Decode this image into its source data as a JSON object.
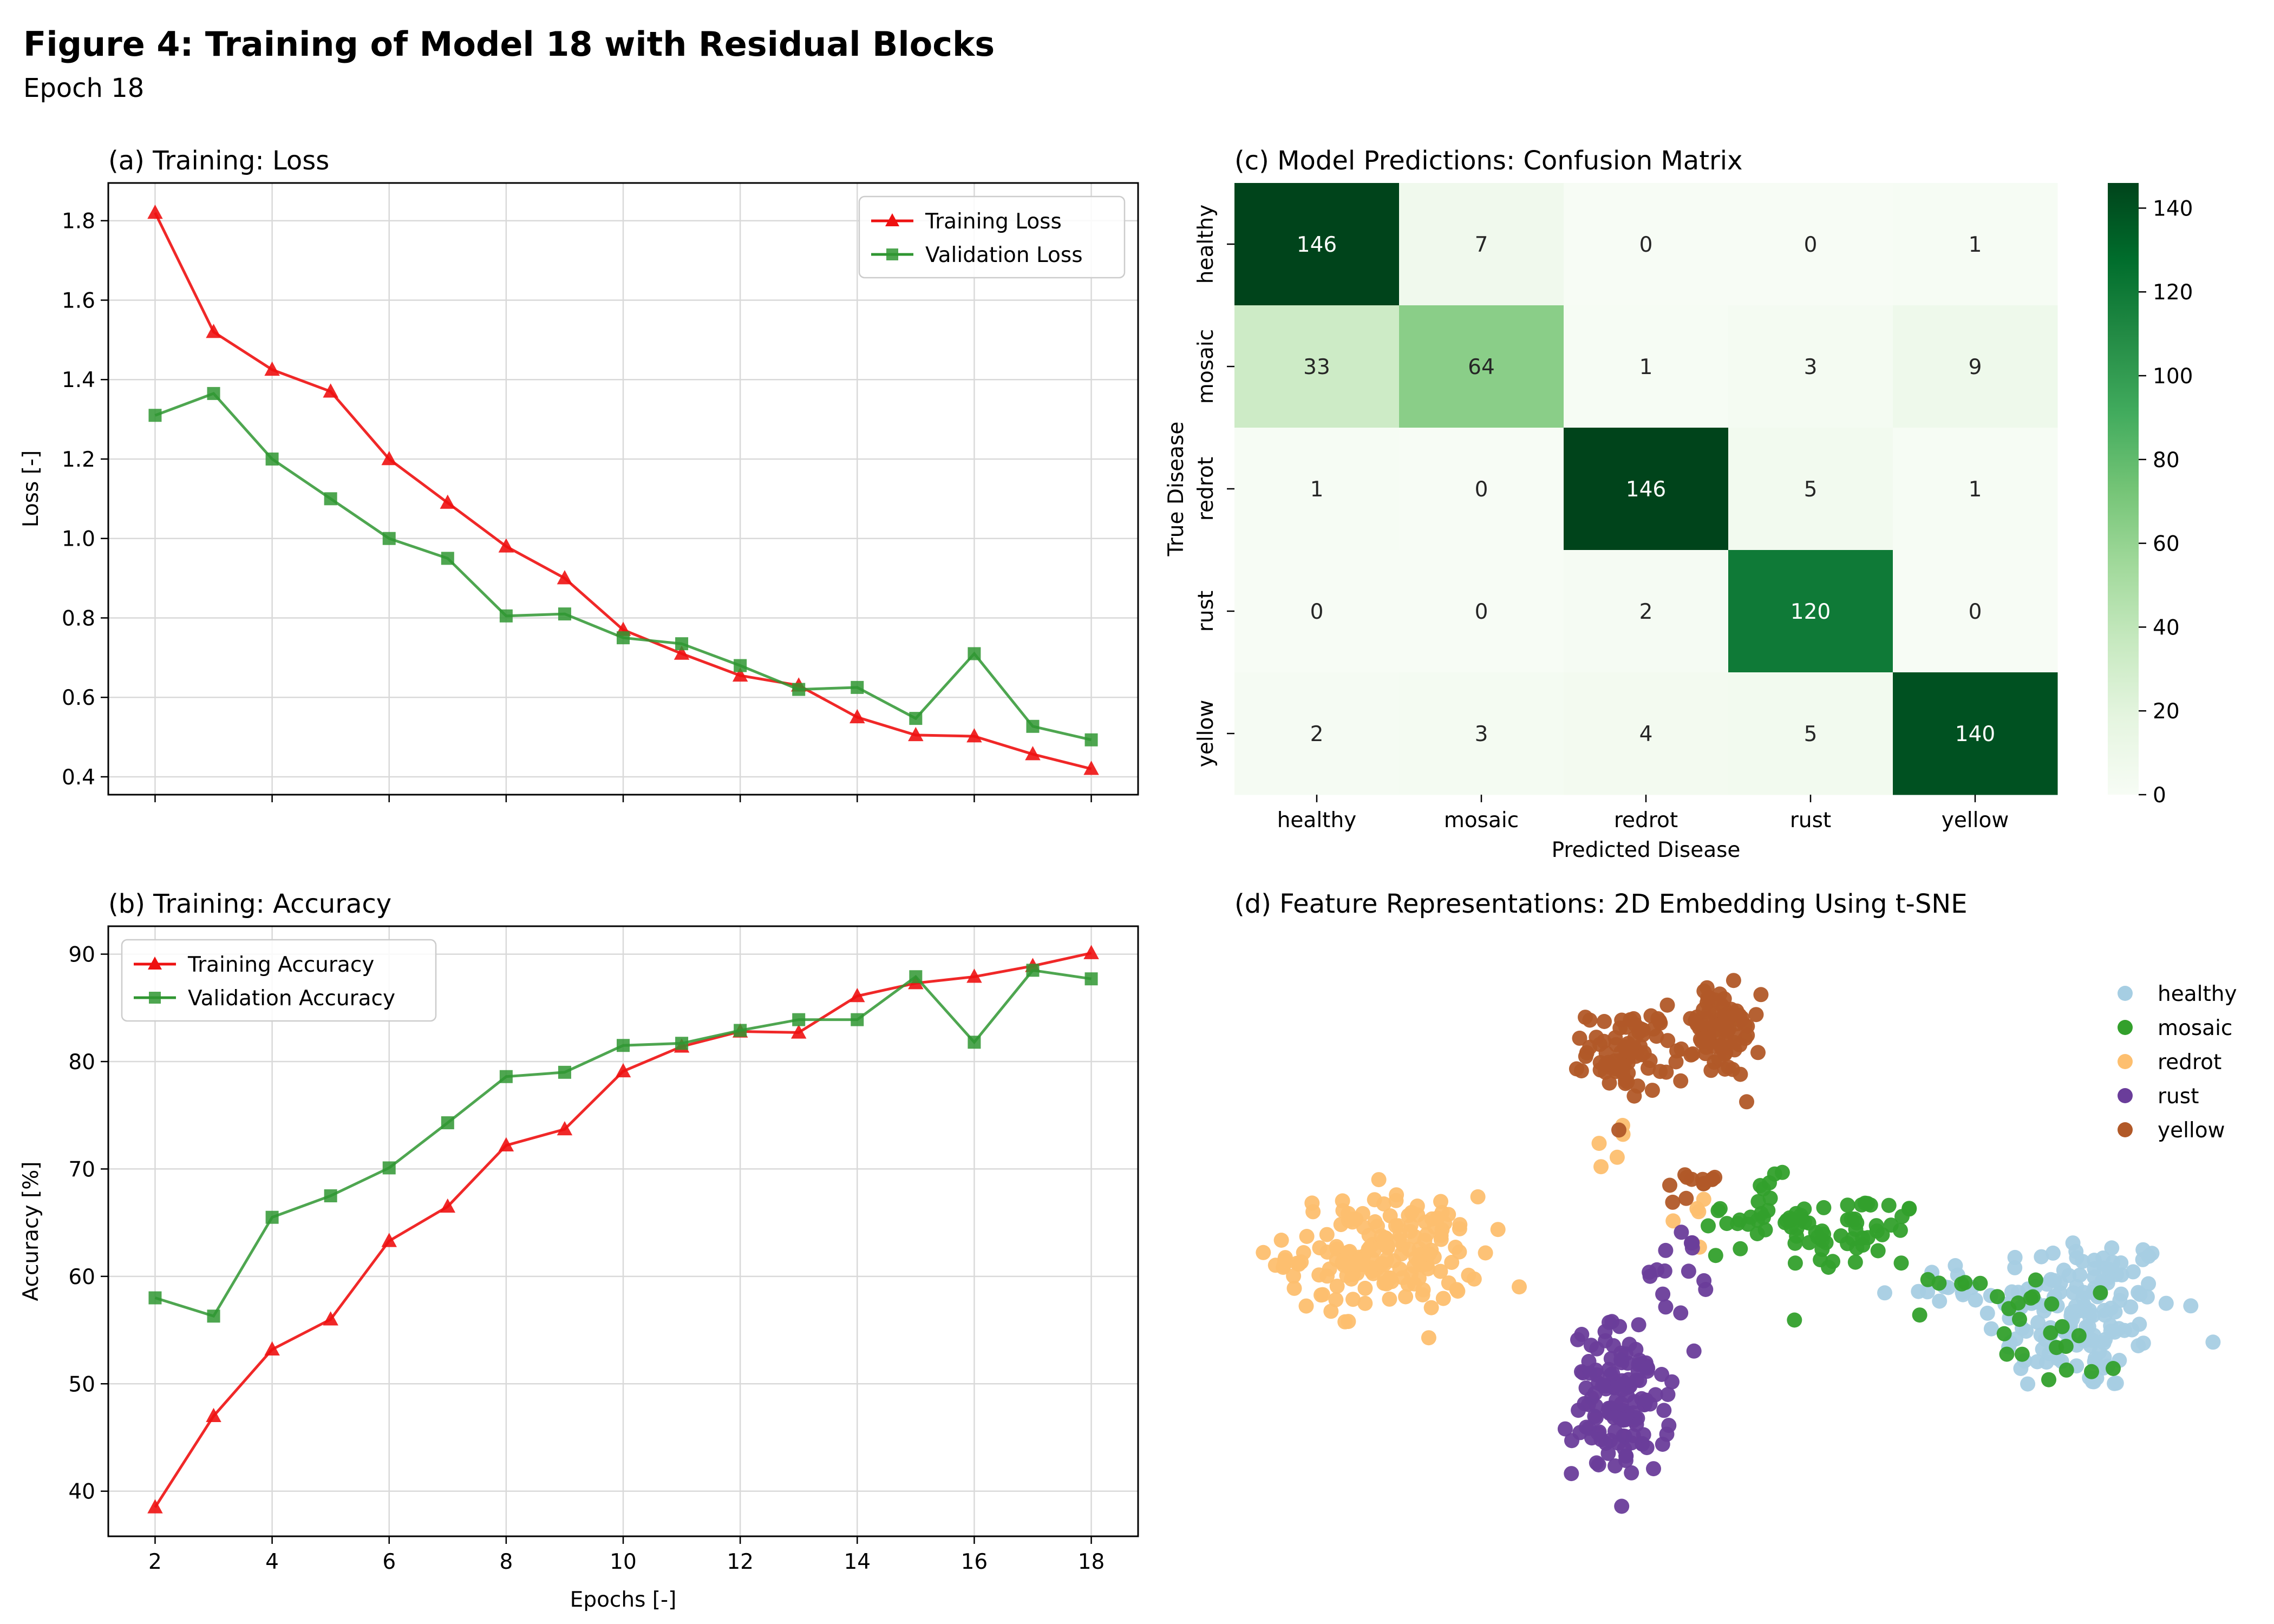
{
  "figure": {
    "title": "Figure 4: Training of Model 18 with Residual Blocks",
    "subtitle": "Epoch 18"
  },
  "colors": {
    "training": "#ee1111",
    "validation": "#2f9631",
    "heatmap_low": "#f7fcf5",
    "heatmap_high": "#00441b",
    "healthy": "#a6cee3",
    "mosaic": "#33a02c",
    "redrot": "#fdbf6f",
    "rust": "#6a3d9a",
    "yellow": "#b15928"
  },
  "chart_data": [
    {
      "type": "line",
      "title": "(a) Training: Loss",
      "xlabel": "",
      "ylabel": "Loss [-]",
      "x": [
        2,
        3,
        4,
        5,
        6,
        7,
        8,
        9,
        10,
        11,
        12,
        13,
        14,
        15,
        16,
        17,
        18
      ],
      "xlim": [
        1.2,
        18.8
      ],
      "ylim": [
        0.355,
        1.895
      ],
      "xticks": [
        2,
        4,
        6,
        8,
        10,
        12,
        14,
        16,
        18
      ],
      "xtick_labels_visible": false,
      "yticks": [
        "0.4",
        "0.6",
        "0.8",
        "1.0",
        "1.2",
        "1.4",
        "1.6",
        "1.8"
      ],
      "grid": true,
      "legend": "top-right",
      "series": [
        {
          "name": "Training Loss",
          "marker": "triangle",
          "values": [
            1.82,
            1.52,
            1.425,
            1.37,
            1.2,
            1.09,
            0.98,
            0.9,
            0.77,
            0.71,
            0.655,
            0.63,
            0.55,
            0.505,
            0.502,
            0.457,
            0.42
          ]
        },
        {
          "name": "Validation Loss",
          "marker": "square",
          "values": [
            1.31,
            1.365,
            1.2,
            1.1,
            1.0,
            0.95,
            0.805,
            0.81,
            0.75,
            0.735,
            0.68,
            0.62,
            0.625,
            0.547,
            0.71,
            0.527,
            0.493
          ]
        }
      ]
    },
    {
      "type": "line",
      "title": "(b) Training: Accuracy",
      "xlabel": "Epochs [-]",
      "ylabel": "Accuracy [%]",
      "x": [
        2,
        3,
        4,
        5,
        6,
        7,
        8,
        9,
        10,
        11,
        12,
        13,
        14,
        15,
        16,
        17,
        18
      ],
      "xlim": [
        1.2,
        18.8
      ],
      "ylim": [
        35.8,
        92.6
      ],
      "xticks": [
        2,
        4,
        6,
        8,
        10,
        12,
        14,
        16,
        18
      ],
      "xtick_labels": [
        "2",
        "4",
        "6",
        "8",
        "10",
        "12",
        "14",
        "16",
        "18"
      ],
      "yticks": [
        "40",
        "50",
        "60",
        "70",
        "80",
        "90"
      ],
      "grid": true,
      "legend": "top-left",
      "series": [
        {
          "name": "Training Accuracy",
          "marker": "triangle",
          "values": [
            38.5,
            47.0,
            53.2,
            56.0,
            63.3,
            66.5,
            72.2,
            73.7,
            79.1,
            81.4,
            82.8,
            82.7,
            86.1,
            87.3,
            87.9,
            88.9,
            90.1
          ]
        },
        {
          "name": "Validation Accuracy",
          "marker": "square",
          "values": [
            58.0,
            56.3,
            65.5,
            67.5,
            70.1,
            74.3,
            78.6,
            79.0,
            81.5,
            81.7,
            82.9,
            83.9,
            83.9,
            87.9,
            81.8,
            88.5,
            87.7
          ]
        }
      ]
    },
    {
      "type": "heatmap",
      "title": "(c) Model Predictions: Confusion Matrix",
      "xlabel": "Predicted Disease",
      "ylabel": "True Disease",
      "x_categories": [
        "healthy",
        "mosaic",
        "redrot",
        "rust",
        "yellow"
      ],
      "y_categories": [
        "healthy",
        "mosaic",
        "redrot",
        "rust",
        "yellow"
      ],
      "values": [
        [
          146,
          7,
          0,
          0,
          1
        ],
        [
          33,
          64,
          1,
          3,
          9
        ],
        [
          1,
          0,
          146,
          5,
          1
        ],
        [
          0,
          0,
          2,
          120,
          0
        ],
        [
          2,
          3,
          4,
          5,
          140
        ]
      ],
      "colorbar": {
        "min": 0,
        "max": 146,
        "ticks": [
          "0",
          "20",
          "40",
          "60",
          "80",
          "100",
          "120",
          "140"
        ]
      }
    },
    {
      "type": "scatter",
      "title": "(d) Feature Representations: 2D Embedding Using t-SNE",
      "axes_visible": false,
      "legend": "top-right",
      "series": [
        {
          "name": "healthy",
          "clusters": [
            {
              "center": [
                95,
                -5
              ],
              "spread": [
                16,
                14
              ],
              "count": 150
            },
            {
              "center": [
                62,
                2
              ],
              "spread": [
                6,
                5
              ],
              "count": 10
            }
          ]
        },
        {
          "name": "mosaic",
          "clusters": [
            {
              "center": [
                38,
                15
              ],
              "spread": [
                12,
                7
              ],
              "count": 50
            },
            {
              "center": [
                15,
                20
              ],
              "spread": [
                9,
                6
              ],
              "count": 30
            },
            {
              "center": [
                72,
                -2
              ],
              "spread": [
                9,
                6
              ],
              "count": 15
            },
            {
              "center": [
                90,
                -14
              ],
              "spread": [
                10,
                8
              ],
              "count": 12
            }
          ]
        },
        {
          "name": "redrot",
          "clusters": [
            {
              "center": [
                -78,
                10
              ],
              "spread": [
                16,
                10
              ],
              "count": 170
            },
            {
              "center": [
                -22,
                38
              ],
              "spread": [
                3,
                3
              ],
              "count": 5
            },
            {
              "center": [
                -5,
                18
              ],
              "spread": [
                4,
                4
              ],
              "count": 5
            }
          ]
        },
        {
          "name": "rust",
          "clusters": [
            {
              "center": [
                -19,
                -28
              ],
              "spread": [
                8,
                13
              ],
              "count": 130
            },
            {
              "center": [
                -5,
                5
              ],
              "spread": [
                6,
                7
              ],
              "count": 15
            }
          ]
        },
        {
          "name": "yellow",
          "clusters": [
            {
              "center": [
                -17,
                62
              ],
              "spread": [
                7,
                7
              ],
              "count": 80
            },
            {
              "center": [
                5,
                67
              ],
              "spread": [
                7,
                8
              ],
              "count": 80
            },
            {
              "center": [
                0,
                29
              ],
              "spread": [
                4,
                4
              ],
              "count": 12
            }
          ]
        }
      ]
    }
  ]
}
